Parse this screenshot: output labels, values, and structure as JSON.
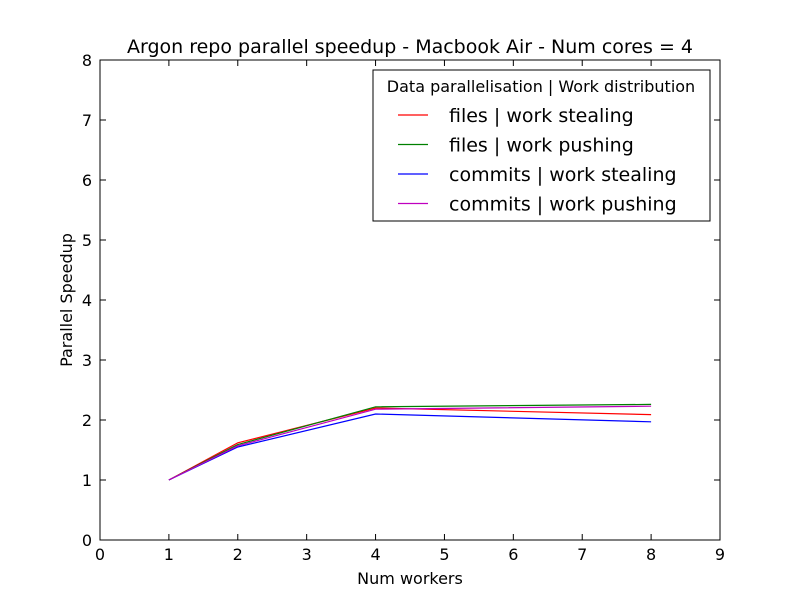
{
  "chart_data": {
    "type": "line",
    "title": "Argon repo parallel speedup - Macbook Air - Num cores = 4",
    "xlabel": "Num workers",
    "ylabel": "Parallel Speedup",
    "xlim": [
      0,
      9
    ],
    "ylim": [
      0,
      8
    ],
    "xticks": [
      "0",
      "1",
      "2",
      "3",
      "4",
      "5",
      "6",
      "7",
      "8",
      "9"
    ],
    "yticks": [
      "0",
      "1",
      "2",
      "3",
      "4",
      "5",
      "6",
      "7",
      "8"
    ],
    "grid": false,
    "legend": {
      "title": "Data parallelisation | Work distribution",
      "placement": "top-right"
    },
    "x": [
      1,
      2,
      4,
      8
    ],
    "series": [
      {
        "name": "files | work stealing",
        "color": "#ff0000",
        "values": [
          1.0,
          1.62,
          2.2,
          2.09
        ]
      },
      {
        "name": "files | work pushing",
        "color": "#008000",
        "values": [
          1.0,
          1.59,
          2.22,
          2.26
        ]
      },
      {
        "name": "commits | work stealing",
        "color": "#0000ff",
        "values": [
          1.0,
          1.55,
          2.1,
          1.97
        ]
      },
      {
        "name": "commits | work pushing",
        "color": "#bf00bf",
        "values": [
          1.0,
          1.57,
          2.18,
          2.23
        ]
      }
    ]
  }
}
